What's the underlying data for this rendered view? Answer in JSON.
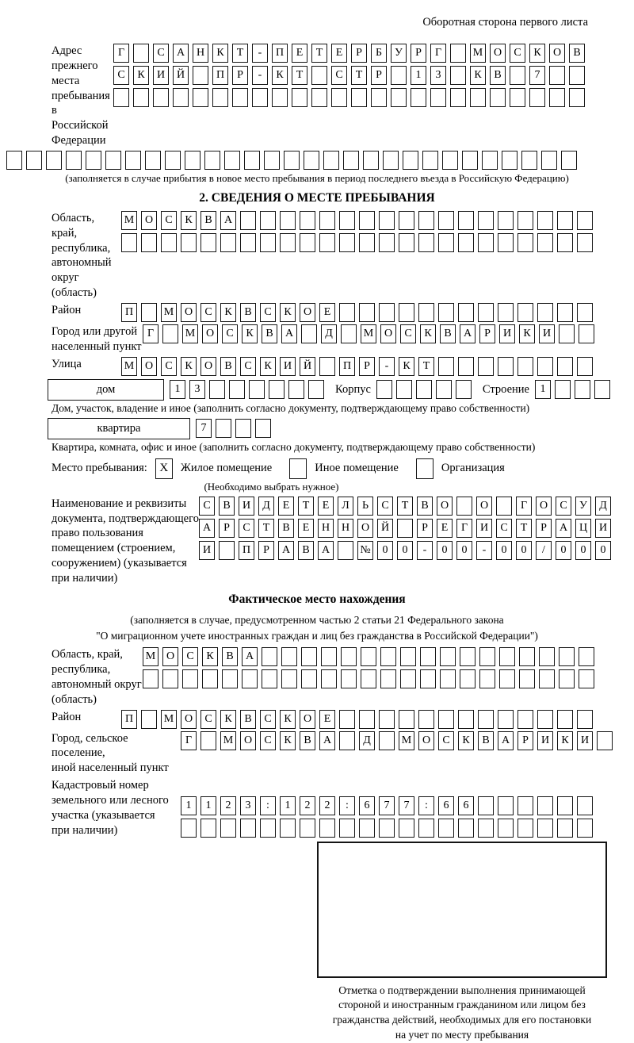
{
  "page": {
    "corner_note": "Оборотная сторона первого листа"
  },
  "prev_address": {
    "label": "Адрес прежнего\nместа пребывания\nв Российской\nФедерации",
    "row1": {
      "text": "Г САНКТ-ПЕТЕРБУРГ МОСКОВ",
      "len": 24
    },
    "row2": {
      "text": "СКИЙ ПР-КТ СТР 13 КВ 7",
      "len": 24
    },
    "row3": {
      "text": "",
      "len": 24
    },
    "row4": {
      "text": "",
      "len": 29
    },
    "note": "(заполняется в случае прибытия в новое место пребывания в период последнего въезда в Российскую Федерацию)"
  },
  "section2": {
    "title": "2. СВЕДЕНИЯ О МЕСТЕ ПРЕБЫВАНИЯ",
    "oblast": {
      "label": "Область, край,\nреспублика,\nавтономный\nокруг (область)",
      "row1": {
        "text": "МОСКВА",
        "len": 24
      },
      "row2": {
        "text": "",
        "len": 24
      }
    },
    "raion": {
      "label": "Район",
      "row1": {
        "text": "П МОСКВСКОЕ",
        "len": 24
      }
    },
    "gorod": {
      "label": "Город или другой\nнаселенный пункт",
      "row1": {
        "text": "Г МОСКВА Д МОСКВАРИКИ",
        "len": 23
      }
    },
    "ulitsa": {
      "label": "Улица",
      "row1": {
        "text": "МОСКОВСКИЙ ПР-КТ",
        "len": 24
      }
    },
    "dom": {
      "box_label": "дом",
      "cells": {
        "text": "13",
        "len": 8
      },
      "korpus_label": "Корпус",
      "korpus_cells": {
        "text": "",
        "len": 5
      },
      "stroenie_label": "Строение",
      "stroenie_cells": {
        "text": "1",
        "len": 4
      },
      "note": "Дом, участок, владение и иное (заполнить согласно документу, подтверждающему право собственности)"
    },
    "kvartira": {
      "box_label": "квартира",
      "cells": {
        "text": "7",
        "len": 4
      },
      "note": "Квартира, комната, офис и иное (заполнить согласно документу, подтверждающему право собственности)"
    },
    "mesto": {
      "label": "Место пребывания:",
      "options": [
        {
          "label": "Жилое помещение",
          "mark": "X"
        },
        {
          "label": "Иное помещение",
          "mark": ""
        },
        {
          "label": "Организация",
          "mark": ""
        }
      ],
      "note": "(Необходимо выбрать нужное)"
    },
    "doc": {
      "label": "Наименование и реквизиты\nдокумента, подтверждающего\nправо пользования\nпомещением (строением,\nсооружением) (указывается\nпри наличии)",
      "row1": {
        "text": "СВИДЕТЕЛЬСТВО О ГОСУД",
        "len": 21
      },
      "row2": {
        "text": "АРСТВЕННОЙ РЕГИСТРАЦИ",
        "len": 21
      },
      "row3": {
        "text": "И ПРАВА №00-00-00/000",
        "len": 21
      }
    }
  },
  "factual": {
    "title": "Фактическое место нахождения",
    "note": "(заполняется в случае, предусмотренном частью 2 статьи 21 Федерального закона\n\"О миграционном учете иностранных граждан и лиц без гражданства в Российской Федерации\")",
    "oblast": {
      "label": "Область, край,\nреспублика,\nавтономный округ\n(область)",
      "row1": {
        "text": "МОСКВА",
        "len": 23
      },
      "row2": {
        "text": "",
        "len": 23
      }
    },
    "raion": {
      "label": "Район",
      "row1": {
        "text": "П МОСКВСКОЕ",
        "len": 24
      }
    },
    "gorod": {
      "label": "Город, сельское поселение,\nиной населенный пункт",
      "row1": {
        "text": "Г МОСКВА Д МОСКВАРИКИ",
        "len": 22
      }
    },
    "kadastr": {
      "label": "Кадастровый номер\nземельного или лесного\nучастка (указывается\nпри наличии)",
      "row1": {
        "text": "1123:122:677:66",
        "len": 21
      },
      "row2": {
        "text": "",
        "len": 21
      }
    }
  },
  "stamp": {
    "caption": "Отметка о подтверждении выполнения принимающей\nстороной и иностранным гражданином или лицом без\nгражданства действий, необходимых для его постановки\nна учет по месту пребывания"
  }
}
